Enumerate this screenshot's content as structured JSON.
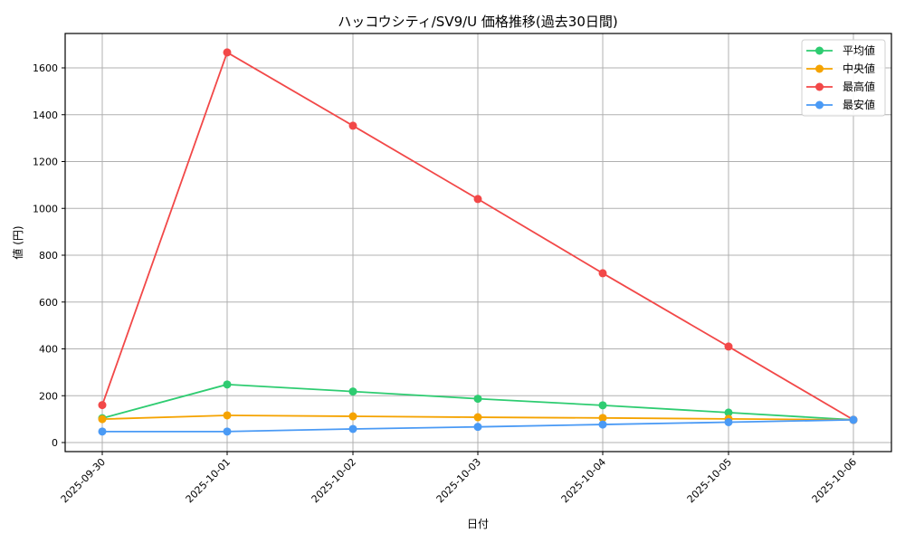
{
  "chart_data": {
    "type": "line",
    "title": "ハッコウシティ/SV9/U 価格推移(過去30日間)",
    "xlabel": "日付",
    "ylabel": "値 (円)",
    "categories": [
      "2025-09-30",
      "2025-10-01",
      "2025-10-02",
      "2025-10-03",
      "2025-10-04",
      "2025-10-05",
      "2025-10-06"
    ],
    "series": [
      {
        "name": "平均値",
        "color": "#2ecc71",
        "values": [
          104,
          248,
          218,
          187,
          159,
          128,
          97
        ]
      },
      {
        "name": "中央値",
        "color": "#f5a300",
        "values": [
          100,
          116,
          112,
          108,
          105,
          101,
          97
        ]
      },
      {
        "name": "最高値",
        "color": "#f24848",
        "values": [
          160,
          1666,
          1353,
          1040,
          723,
          410,
          97
        ]
      },
      {
        "name": "最安値",
        "color": "#4a9af5",
        "values": [
          47,
          47,
          58,
          67,
          77,
          87,
          97
        ]
      }
    ],
    "ylim": [
      -45,
      1740
    ],
    "yticks": [
      0,
      200,
      400,
      600,
      800,
      1000,
      1200,
      1400,
      1600
    ],
    "grid": true,
    "legend_position": "upper right",
    "marker": "circle"
  }
}
